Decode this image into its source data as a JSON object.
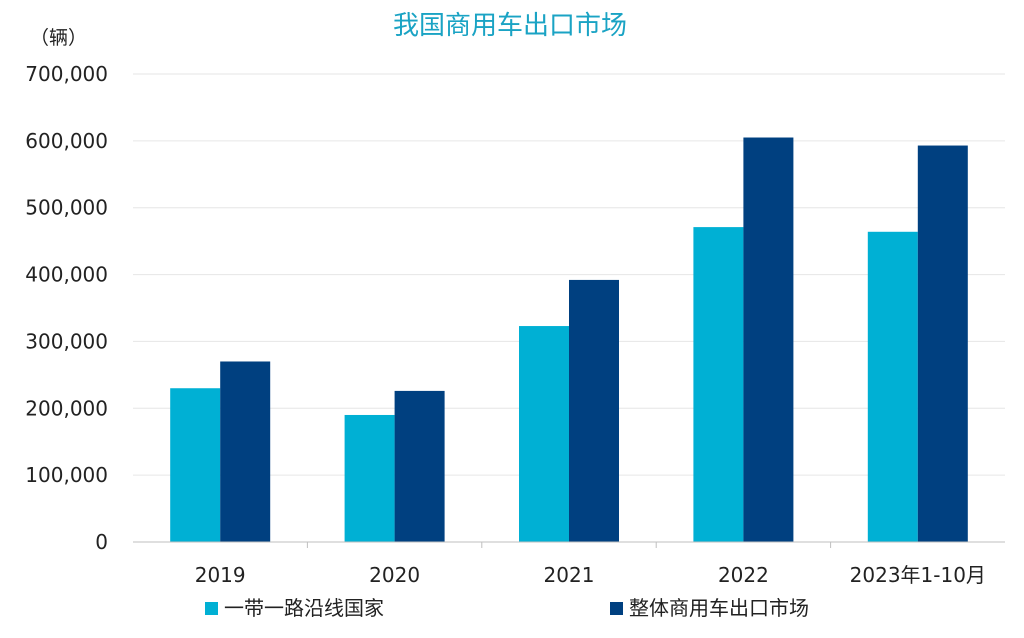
{
  "chart_data": {
    "type": "bar",
    "title": "我国商用车出口市场",
    "unit_label": "（辆）",
    "categories": [
      "2019",
      "2020",
      "2021",
      "2022",
      "2023年1-10月"
    ],
    "series": [
      {
        "name": "一带一路沿线国家",
        "color": "#00b0d4",
        "values": [
          230000,
          190000,
          323000,
          471000,
          464000
        ]
      },
      {
        "name": "整体商用车出口市场",
        "color": "#004080",
        "values": [
          270000,
          226000,
          392000,
          605000,
          593000
        ]
      }
    ],
    "ylim": [
      0,
      700000
    ],
    "yticks": [
      0,
      100000,
      200000,
      300000,
      400000,
      500000,
      600000,
      700000
    ],
    "ytick_labels": [
      "0",
      "100,000",
      "200,000",
      "300,000",
      "400,000",
      "500,000",
      "600,000",
      "700,000"
    ],
    "grid": true,
    "legend_position": "bottom"
  },
  "colors": {
    "title": "#1aa3c4",
    "grid": "#e6e6e6",
    "axis": "#bfbfbf"
  }
}
